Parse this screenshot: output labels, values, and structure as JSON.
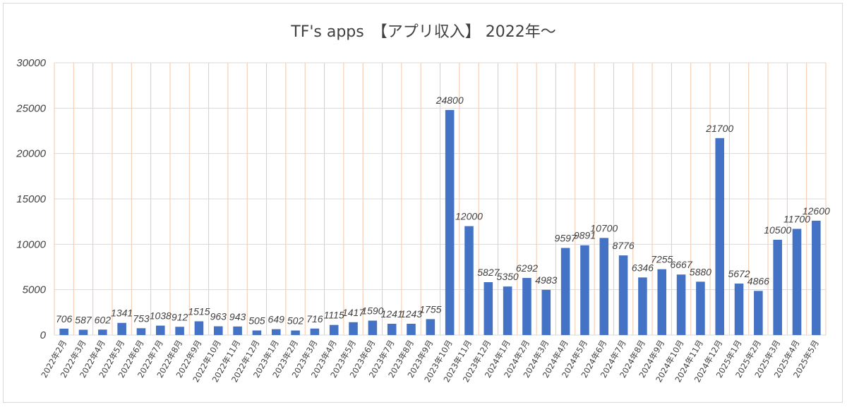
{
  "chart_data": {
    "type": "bar",
    "title": "TF's apps　【アプリ収入】 2022年～",
    "xlabel": "",
    "ylabel": "",
    "ylim": [
      0,
      30000
    ],
    "yticks": [
      "0",
      "5000",
      "10000",
      "15000",
      "20000",
      "25000",
      "30000"
    ],
    "grid": true,
    "legend": "none",
    "bar_color": "#4472c4",
    "categories": [
      "2022年2月",
      "2022年3月",
      "2022年4月",
      "2022年5月",
      "2022年6月",
      "2022年7月",
      "2022年8月",
      "2022年9月",
      "2022年10月",
      "2022年11月",
      "2022年12月",
      "2023年1月",
      "2023年2月",
      "2023年3月",
      "2023年4月",
      "2023年5月",
      "2023年6月",
      "2023年7月",
      "2023年8月",
      "2023年9月",
      "2023年10月",
      "2023年11月",
      "2023年12月",
      "2024年1月",
      "2024年2月",
      "2024年3月",
      "2024年4月",
      "2024年5月",
      "2024年6月",
      "2024年7月",
      "2024年8月",
      "2024年9月",
      "2024年10月",
      "2024年11月",
      "2024年12月",
      "2025年1月",
      "2025年2月",
      "2025年3月",
      "2025年4月",
      "2025年5月"
    ],
    "values": [
      706,
      587,
      602,
      1341,
      753,
      1038,
      912,
      1515,
      963,
      943,
      505,
      649,
      502,
      716,
      1115,
      1417,
      1590,
      1241,
      1243,
      1755,
      24800,
      12000,
      5827,
      5350,
      6292,
      4983,
      9597,
      9891,
      10700,
      8776,
      6346,
      7255,
      6667,
      5880,
      21700,
      5672,
      4866,
      10500,
      11700,
      12600
    ]
  },
  "colors": {
    "bar": "#4472c4",
    "hgrid": "#d9d9d9",
    "vgrid": "#f4c6a8",
    "text": "#404040"
  }
}
